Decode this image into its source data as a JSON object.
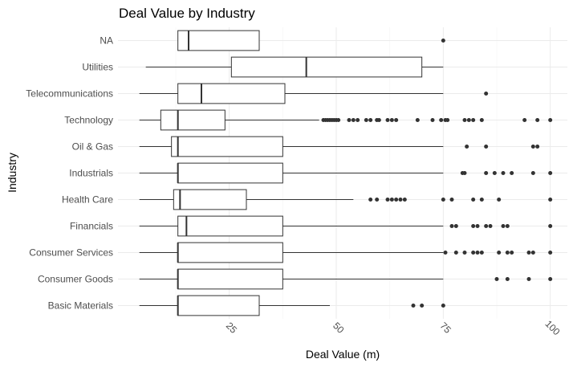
{
  "chart_data": {
    "type": "boxplot",
    "title": "Deal Value by Industry",
    "xlabel": "Deal Value (m)",
    "ylabel": "Industry",
    "xlim": [
      -1,
      104
    ],
    "xticks": [
      25,
      50,
      75,
      100
    ],
    "xtick_labels": [
      "25",
      "50",
      "75",
      "100"
    ],
    "grid": true,
    "categories": [
      {
        "name": "NA",
        "min": 13,
        "q1": 13,
        "median": 15.5,
        "q3": 32,
        "max": 32,
        "outliers": [
          75
        ]
      },
      {
        "name": "Utilities",
        "min": 5.5,
        "q1": 25.5,
        "median": 43,
        "q3": 70,
        "max": 75,
        "outliers": []
      },
      {
        "name": "Telecommunications",
        "min": 4,
        "q1": 13,
        "median": 18.5,
        "q3": 38,
        "max": 75,
        "outliers": [
          85
        ]
      },
      {
        "name": "Technology",
        "min": 4,
        "q1": 9,
        "median": 13,
        "q3": 24,
        "max": 46,
        "outliers": [
          47,
          47.5,
          48,
          48.5,
          49,
          49.5,
          50,
          50.5,
          53,
          54,
          55,
          57,
          58,
          59.5,
          60,
          62,
          63,
          64,
          69,
          72.5,
          74.5,
          75.5,
          76,
          80,
          81,
          82,
          84,
          94,
          97,
          100
        ]
      },
      {
        "name": "Oil & Gas",
        "min": 4,
        "q1": 11.5,
        "median": 13,
        "q3": 37.5,
        "max": 75,
        "outliers": [
          80.5,
          85,
          96,
          97
        ]
      },
      {
        "name": "Industrials",
        "min": 4,
        "q1": 13,
        "median": 13,
        "q3": 37.5,
        "max": 75,
        "outliers": [
          79.5,
          80,
          85,
          87,
          89,
          91,
          96,
          100
        ]
      },
      {
        "name": "Health Care",
        "min": 4,
        "q1": 12,
        "median": 13.5,
        "q3": 29,
        "max": 54,
        "outliers": [
          58,
          59.5,
          62,
          63,
          64,
          65,
          66,
          75,
          77,
          82,
          84,
          88,
          100
        ]
      },
      {
        "name": "Financials",
        "min": 4,
        "q1": 13,
        "median": 15,
        "q3": 37.5,
        "max": 75,
        "outliers": [
          77,
          78,
          82,
          83,
          85,
          86,
          89,
          90,
          100
        ]
      },
      {
        "name": "Consumer Services",
        "min": 4,
        "q1": 13,
        "median": 13,
        "q3": 37.5,
        "max": 75,
        "outliers": [
          75.5,
          78,
          80,
          82,
          83,
          84,
          88,
          90,
          91,
          95,
          96,
          100
        ]
      },
      {
        "name": "Consumer Goods",
        "min": 4,
        "q1": 13,
        "median": 13,
        "q3": 37.5,
        "max": 75,
        "outliers": [
          87.5,
          90,
          95,
          100
        ]
      },
      {
        "name": "Basic Materials",
        "min": 4,
        "q1": 13,
        "median": 13,
        "q3": 32,
        "max": 48.5,
        "outliers": [
          68,
          70,
          75
        ]
      }
    ]
  }
}
